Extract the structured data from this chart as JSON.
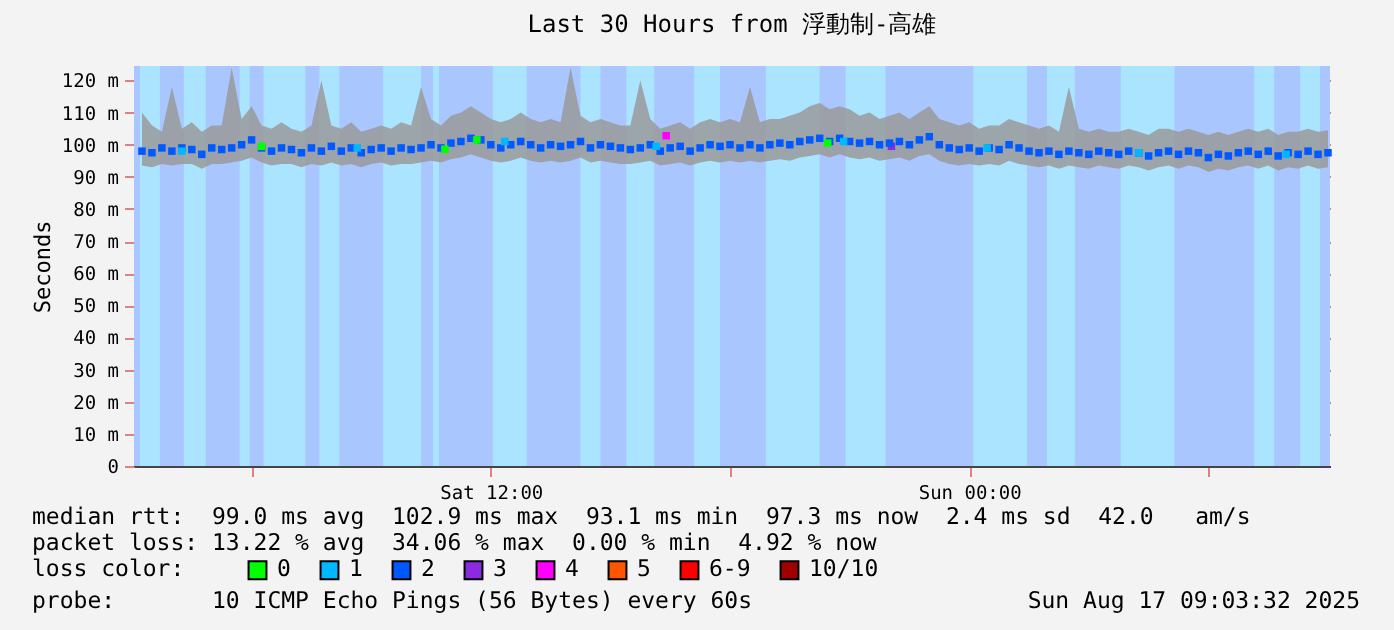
{
  "chart_data": {
    "type": "scatter",
    "title": "Last 30 Hours from 浮動制-高雄",
    "ylabel": "Seconds",
    "legend_title": "loss color:",
    "xlim": [
      "2025-08-16T03:03",
      "2025-08-17T09:03"
    ],
    "ylim": [
      0,
      124.5
    ],
    "xticks": [
      {
        "value": "2025-08-16T06:00",
        "label": null
      },
      {
        "value": "2025-08-16T12:00",
        "label": "Sat 12:00"
      },
      {
        "value": "2025-08-16T18:00",
        "label": null
      },
      {
        "value": "2025-08-17T00:00",
        "label": "Sun 00:00"
      },
      {
        "value": "2025-08-17T06:00",
        "label": null
      }
    ],
    "yticks": [
      0,
      {
        "value": 10,
        "label": "10 m"
      },
      {
        "value": 20,
        "label": "20 m"
      },
      {
        "value": 30,
        "label": "30 m"
      },
      {
        "value": 40,
        "label": "40 m"
      },
      {
        "value": 50,
        "label": "50 m"
      },
      {
        "value": 60,
        "label": "60 m"
      },
      {
        "value": 70,
        "label": "70 m"
      },
      {
        "value": 80,
        "label": "80 m"
      },
      {
        "value": 90,
        "label": "90 m"
      },
      {
        "value": 100,
        "label": "100 m"
      },
      {
        "value": 110,
        "label": "110 m"
      },
      {
        "value": 120,
        "label": "120 m"
      }
    ],
    "grid": true,
    "legend": "bottom",
    "marker": "square",
    "x": [
      "2025-08-16T03:15",
      "2025-08-16T03:30",
      "2025-08-16T03:45",
      "2025-08-16T04:00",
      "2025-08-16T04:15",
      "2025-08-16T04:30",
      "2025-08-16T04:45",
      "2025-08-16T05:00",
      "2025-08-16T05:15",
      "2025-08-16T05:30",
      "2025-08-16T05:45",
      "2025-08-16T06:00",
      "2025-08-16T06:15",
      "2025-08-16T06:30",
      "2025-08-16T06:45",
      "2025-08-16T07:00",
      "2025-08-16T07:15",
      "2025-08-16T07:30",
      "2025-08-16T07:45",
      "2025-08-16T08:00",
      "2025-08-16T08:15",
      "2025-08-16T08:30",
      "2025-08-16T08:45",
      "2025-08-16T09:00",
      "2025-08-16T09:15",
      "2025-08-16T09:30",
      "2025-08-16T09:45",
      "2025-08-16T10:00",
      "2025-08-16T10:15",
      "2025-08-16T10:30",
      "2025-08-16T10:45",
      "2025-08-16T11:00",
      "2025-08-16T11:15",
      "2025-08-16T11:30",
      "2025-08-16T11:45",
      "2025-08-16T12:00",
      "2025-08-16T12:15",
      "2025-08-16T12:30",
      "2025-08-16T12:45",
      "2025-08-16T13:00",
      "2025-08-16T13:15",
      "2025-08-16T13:30",
      "2025-08-16T13:45",
      "2025-08-16T14:00",
      "2025-08-16T14:15",
      "2025-08-16T14:30",
      "2025-08-16T14:45",
      "2025-08-16T15:00",
      "2025-08-16T15:15",
      "2025-08-16T15:30",
      "2025-08-16T15:45",
      "2025-08-16T16:00",
      "2025-08-16T16:15",
      "2025-08-16T16:30",
      "2025-08-16T16:45",
      "2025-08-16T17:00",
      "2025-08-16T17:15",
      "2025-08-16T17:30",
      "2025-08-16T17:45",
      "2025-08-16T18:00",
      "2025-08-16T18:15",
      "2025-08-16T18:30",
      "2025-08-16T18:45",
      "2025-08-16T19:00",
      "2025-08-16T19:15",
      "2025-08-16T19:30",
      "2025-08-16T19:45",
      "2025-08-16T20:00",
      "2025-08-16T20:15",
      "2025-08-16T20:30",
      "2025-08-16T20:45",
      "2025-08-16T21:00",
      "2025-08-16T21:15",
      "2025-08-16T21:30",
      "2025-08-16T21:45",
      "2025-08-16T22:00",
      "2025-08-16T22:15",
      "2025-08-16T22:30",
      "2025-08-16T22:45",
      "2025-08-16T23:00",
      "2025-08-16T23:15",
      "2025-08-16T23:30",
      "2025-08-16T23:45",
      "2025-08-17T00:00",
      "2025-08-17T00:15",
      "2025-08-17T00:30",
      "2025-08-17T00:45",
      "2025-08-17T01:00",
      "2025-08-17T01:15",
      "2025-08-17T01:30",
      "2025-08-17T01:45",
      "2025-08-17T02:00",
      "2025-08-17T02:15",
      "2025-08-17T02:30",
      "2025-08-17T02:45",
      "2025-08-17T03:00",
      "2025-08-17T03:15",
      "2025-08-17T03:30",
      "2025-08-17T03:45",
      "2025-08-17T04:00",
      "2025-08-17T04:15",
      "2025-08-17T04:30",
      "2025-08-17T04:45",
      "2025-08-17T05:00",
      "2025-08-17T05:15",
      "2025-08-17T05:30",
      "2025-08-17T05:45",
      "2025-08-17T06:00",
      "2025-08-17T06:15",
      "2025-08-17T06:30",
      "2025-08-17T06:45",
      "2025-08-17T07:00",
      "2025-08-17T07:15",
      "2025-08-17T07:30",
      "2025-08-17T07:45",
      "2025-08-17T08:00",
      "2025-08-17T08:15",
      "2025-08-17T08:30",
      "2025-08-17T08:45",
      "2025-08-17T09:00"
    ],
    "series": [
      {
        "name": "0",
        "color": "#00ff00",
        "x": [
          "2025-08-16T06:15",
          "2025-08-16T10:51",
          "2025-08-16T11:39",
          "2025-08-16T20:27"
        ],
        "values": [
          99.5,
          98.6,
          101.5,
          100.5
        ]
      },
      {
        "name": "1",
        "color": "#00b8ff",
        "x": [
          "2025-08-16T04:15",
          "2025-08-16T08:39",
          "2025-08-16T12:21",
          "2025-08-16T16:09",
          "2025-08-16T20:51",
          "2025-08-17T00:27",
          "2025-08-17T04:15",
          "2025-08-17T07:57"
        ],
        "values": [
          98,
          99,
          101,
          99.5,
          101,
          99,
          97.5,
          97
        ]
      },
      {
        "name": "2",
        "color": "#0059ff",
        "values": [
          98,
          97.5,
          99,
          98,
          99,
          98.5,
          97,
          99,
          98.5,
          99,
          100,
          101.5,
          99,
          98,
          99,
          98.5,
          97.5,
          99,
          98,
          99.5,
          98,
          99,
          97.5,
          98.5,
          99,
          98,
          99,
          98.5,
          99,
          100,
          99,
          100.5,
          101,
          102,
          101.5,
          100,
          99,
          100,
          101,
          100,
          99,
          100,
          99.5,
          100,
          101,
          99,
          100,
          99.5,
          99,
          98.5,
          99,
          100,
          98,
          99,
          99.5,
          98,
          99,
          100,
          99.5,
          100,
          99,
          100,
          99,
          100,
          100.5,
          100,
          101,
          101.5,
          102,
          101,
          102,
          101,
          100.5,
          101,
          100,
          100.5,
          101,
          100,
          101.5,
          102.5,
          100,
          99,
          98.5,
          99,
          98,
          99,
          98.5,
          100,
          99,
          98,
          97.5,
          98,
          97,
          98,
          97.5,
          97,
          98,
          97.5,
          97,
          98,
          97.5,
          96.5,
          97.5,
          98,
          97,
          98,
          97.5,
          96,
          97,
          96.5,
          97.5,
          98,
          97,
          98,
          96.5,
          97.5,
          97,
          98,
          97,
          97.5
        ],
        "lower": [
          93.5,
          93,
          94,
          93.5,
          94,
          94,
          92.5,
          94,
          94,
          94.5,
          95,
          96,
          94.5,
          93.5,
          94,
          94,
          93,
          94,
          93.5,
          94.5,
          93.5,
          94,
          93,
          94,
          94.5,
          93.5,
          94,
          94,
          94.5,
          95,
          94.5,
          95.5,
          96,
          97,
          96,
          95,
          94.5,
          95,
          96,
          95,
          94.5,
          95,
          94.5,
          95,
          96,
          94.5,
          95,
          94.5,
          94,
          94,
          94.5,
          95,
          93.5,
          94,
          94.5,
          93.5,
          94.5,
          95,
          94.5,
          95,
          94.5,
          95,
          94.5,
          95,
          95.5,
          95,
          96,
          96.5,
          97,
          96,
          97,
          96,
          95.5,
          96,
          95,
          95.5,
          96,
          95,
          96.5,
          97,
          95,
          94,
          93.5,
          94,
          93.5,
          94,
          93.5,
          95,
          94,
          93.5,
          93,
          93.5,
          92.5,
          93.5,
          93,
          92.5,
          93.5,
          93,
          92.5,
          93.5,
          93,
          92,
          93,
          93.5,
          92.5,
          93.5,
          93,
          91.5,
          92.5,
          92,
          93,
          93.5,
          92.5,
          93.5,
          92,
          93,
          92.5,
          93.5,
          92.5,
          93
        ],
        "upper": [
          110,
          106,
          104,
          118,
          105,
          107,
          104,
          106,
          106,
          124,
          108,
          112,
          106,
          105,
          107,
          105,
          104,
          106,
          120,
          106,
          105,
          107,
          104,
          105,
          106,
          105,
          107,
          106,
          118,
          108,
          106,
          109,
          110,
          112,
          110,
          108,
          107,
          108,
          110,
          108,
          107,
          108,
          107,
          124,
          109,
          107,
          108,
          107,
          106,
          106,
          120,
          108,
          105,
          106,
          107,
          105,
          107,
          108,
          107,
          108,
          107,
          118,
          107,
          108,
          108,
          109,
          110,
          112,
          113,
          111,
          112,
          111,
          109,
          110,
          108,
          109,
          110,
          108,
          110,
          112,
          108,
          107,
          106,
          107,
          105,
          106,
          106,
          108,
          107,
          106,
          105,
          106,
          104,
          118,
          105,
          104,
          105,
          104,
          104,
          105,
          104,
          103,
          105,
          105,
          104,
          105,
          104,
          103,
          104,
          103,
          104,
          105,
          104,
          105,
          103,
          104,
          104,
          105,
          104,
          104.5
        ]
      },
      {
        "name": "3",
        "color": "#8a2be2",
        "x": [
          "2025-08-16T22:03"
        ],
        "values": [
          99.5
        ]
      },
      {
        "name": "4",
        "color": "#ff00ff",
        "x": [
          "2025-08-16T16:24"
        ],
        "values": [
          102.8
        ]
      },
      {
        "name": "5",
        "color": "#ff5500",
        "values": [
          null,
          null,
          null,
          null,
          null,
          null,
          null,
          null,
          null,
          null,
          null,
          null,
          null,
          null,
          null,
          null,
          null,
          null,
          null,
          null,
          null,
          null,
          null,
          null,
          null,
          null,
          null,
          null,
          null,
          null,
          null,
          null,
          null,
          null,
          null,
          null,
          null,
          null,
          null,
          null,
          null,
          null,
          null,
          null,
          null,
          null,
          null,
          null,
          null,
          null,
          null,
          null,
          null,
          null,
          null,
          null,
          null,
          null,
          null,
          null,
          null,
          null,
          null,
          null,
          null,
          null,
          null,
          null,
          null,
          null,
          null,
          null,
          null,
          null,
          null,
          null,
          null,
          null,
          null,
          null,
          null,
          null,
          null,
          null,
          null,
          null,
          null,
          null,
          null,
          null,
          null,
          null,
          null,
          null,
          null,
          null,
          null,
          null,
          null,
          null,
          null,
          null,
          null,
          null,
          null,
          null,
          null,
          null,
          null,
          null,
          null,
          null,
          null,
          null,
          null,
          null,
          null,
          null,
          null,
          null
        ]
      },
      {
        "name": "6-9",
        "color": "#ff0000",
        "values": [
          null,
          null,
          null,
          null,
          null,
          null,
          null,
          null,
          null,
          null,
          null,
          null,
          null,
          null,
          null,
          null,
          null,
          null,
          null,
          null,
          null,
          null,
          null,
          null,
          null,
          null,
          null,
          null,
          null,
          null,
          null,
          null,
          null,
          null,
          null,
          null,
          null,
          null,
          null,
          null,
          null,
          null,
          null,
          null,
          null,
          null,
          null,
          null,
          null,
          null,
          null,
          null,
          null,
          null,
          null,
          null,
          null,
          null,
          null,
          null,
          null,
          null,
          null,
          null,
          null,
          null,
          null,
          null,
          null,
          null,
          null,
          null,
          null,
          null,
          null,
          null,
          null,
          null,
          null,
          null,
          null,
          null,
          null,
          null,
          null,
          null,
          null,
          null,
          null,
          null,
          null,
          null,
          null,
          null,
          null,
          null,
          null,
          null,
          null,
          null,
          null,
          null,
          null,
          null,
          null,
          null,
          null,
          null,
          null,
          null,
          null,
          null,
          null,
          null,
          null,
          null,
          null,
          null,
          null,
          null
        ]
      },
      {
        "name": "10/10",
        "color": "#a10000",
        "values": [
          null,
          null,
          null,
          null,
          null,
          null,
          null,
          null,
          null,
          null,
          null,
          null,
          null,
          null,
          null,
          null,
          null,
          null,
          null,
          null,
          null,
          null,
          null,
          null,
          null,
          null,
          null,
          null,
          null,
          null,
          null,
          null,
          null,
          null,
          null,
          null,
          null,
          null,
          null,
          null,
          null,
          null,
          null,
          null,
          null,
          null,
          null,
          null,
          null,
          null,
          null,
          null,
          null,
          null,
          null,
          null,
          null,
          null,
          null,
          null,
          null,
          null,
          null,
          null,
          null,
          null,
          null,
          null,
          null,
          null,
          null,
          null,
          null,
          null,
          null,
          null,
          null,
          null,
          null,
          null,
          null,
          null,
          null,
          null,
          null,
          null,
          null,
          null,
          null,
          null,
          null,
          null,
          null,
          null,
          null,
          null,
          null,
          null,
          null,
          null,
          null,
          null,
          null,
          null,
          null,
          null,
          null,
          null,
          null,
          null,
          null,
          null,
          null,
          null,
          null,
          null,
          null,
          null,
          null,
          null
        ]
      }
    ],
    "bands": [
      {
        "axis": "x",
        "from": "2025-08-16T03:03",
        "to": "2025-08-17T09:03",
        "color": "#aac6ff"
      },
      {
        "axis": "x",
        "from": "2025-08-16T03:12",
        "to": "2025-08-16T03:42",
        "color": "#aae4ff"
      },
      {
        "axis": "x",
        "from": "2025-08-16T04:18",
        "to": "2025-08-16T04:51",
        "color": "#aae4ff"
      },
      {
        "axis": "x",
        "from": "2025-08-16T05:42",
        "to": "2025-08-16T05:57",
        "color": "#aae4ff"
      },
      {
        "axis": "x",
        "from": "2025-08-16T06:18",
        "to": "2025-08-16T07:21",
        "color": "#aae4ff"
      },
      {
        "axis": "x",
        "from": "2025-08-16T07:42",
        "to": "2025-08-16T08:12",
        "color": "#aae4ff"
      },
      {
        "axis": "x",
        "from": "2025-08-16T09:18",
        "to": "2025-08-16T10:15",
        "color": "#aae4ff"
      },
      {
        "axis": "x",
        "from": "2025-08-16T10:33",
        "to": "2025-08-16T10:42",
        "color": "#aae4ff"
      },
      {
        "axis": "x",
        "from": "2025-08-16T12:03",
        "to": "2025-08-16T12:54",
        "color": "#aae4ff"
      },
      {
        "axis": "x",
        "from": "2025-08-16T14:15",
        "to": "2025-08-16T14:45",
        "color": "#aae4ff"
      },
      {
        "axis": "x",
        "from": "2025-08-16T15:24",
        "to": "2025-08-16T16:06",
        "color": "#aae4ff"
      },
      {
        "axis": "x",
        "from": "2025-08-16T17:06",
        "to": "2025-08-16T17:45",
        "color": "#aae4ff"
      },
      {
        "axis": "x",
        "from": "2025-08-16T18:54",
        "to": "2025-08-16T20:15",
        "color": "#aae4ff"
      },
      {
        "axis": "x",
        "from": "2025-08-16T20:54",
        "to": "2025-08-16T21:54",
        "color": "#aae4ff"
      },
      {
        "axis": "x",
        "from": "2025-08-17T00:06",
        "to": "2025-08-17T01:27",
        "color": "#aae4ff"
      },
      {
        "axis": "x",
        "from": "2025-08-17T01:57",
        "to": "2025-08-17T02:39",
        "color": "#aae4ff"
      },
      {
        "axis": "x",
        "from": "2025-08-17T03:48",
        "to": "2025-08-17T05:09",
        "color": "#aae4ff"
      },
      {
        "axis": "x",
        "from": "2025-08-17T07:09",
        "to": "2025-08-17T07:39",
        "color": "#aae4ff"
      },
      {
        "axis": "x",
        "from": "2025-08-17T08:18",
        "to": "2025-08-17T08:48",
        "color": "#aae4ff"
      }
    ],
    "annotations": [
      "median rtt:  99.0 ms avg  102.9 ms max  93.1 ms min  97.3 ms now  2.4 ms sd  42.0   am/s",
      "packet loss: 13.22 % avg  34.06 % max  0.00 % min  4.92 % now",
      "probe:       10 ICMP Echo Pings (56 Bytes) every 60s",
      "Sun Aug 17 09:03:32 2025"
    ]
  }
}
